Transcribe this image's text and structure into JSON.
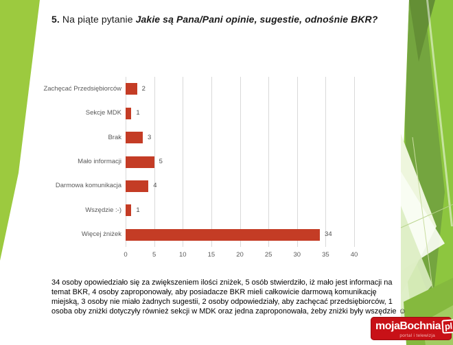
{
  "slide": {
    "title": {
      "number": "5.",
      "lead": " Na piąte pytanie ",
      "question": "Jakie są Pana/Pani opinie, sugestie, odnośnie BKR?"
    },
    "body_text": "34 osoby opowiedziało się za zwiększeniem ilości zniżek, 5 osób stwierdziło, iż mało jest informacji na temat BKR, 4 osoby zaproponowały, aby posiadacze BKR mieli całkowicie darmową komunikację miejską, 3 osoby nie miało żadnych sugestii, 2 osoby odpowiedziały, aby zachęcać przedsiębiorców, 1 osoba oby zniżki dotyczyły również sekcji w MDK oraz jedna zaproponowała, żeby zniżki były wszędzie ☺"
  },
  "chart_data": {
    "type": "bar",
    "orientation": "horizontal",
    "title": "",
    "categories": [
      "Zachęcać Przedsiębiorców",
      "Sekcje MDK",
      "Brak",
      "Mało informacji",
      "Darmowa komunikacja",
      "Wszędzie :-)",
      "Więcej żniżek"
    ],
    "values": [
      2,
      1,
      3,
      5,
      4,
      1,
      34
    ],
    "xlim": [
      0,
      40
    ],
    "xticks": [
      0,
      5,
      10,
      15,
      20,
      25,
      30,
      35,
      40
    ],
    "grid": true,
    "legend": false,
    "value_labels": true,
    "bar_color": "#c43c25",
    "grid_color": "#d9d9d9",
    "label_color": "#595959"
  },
  "logo": {
    "brand": "mojaBochnia",
    "brand_tld": "pl",
    "tagline": "portal i telewizja",
    "bg_color": "#c81117"
  },
  "theme": {
    "green_light": "#8dc63f",
    "green_mid": "#74a53f",
    "green_dark": "#648f35",
    "green_pale": "#eef6dd"
  }
}
